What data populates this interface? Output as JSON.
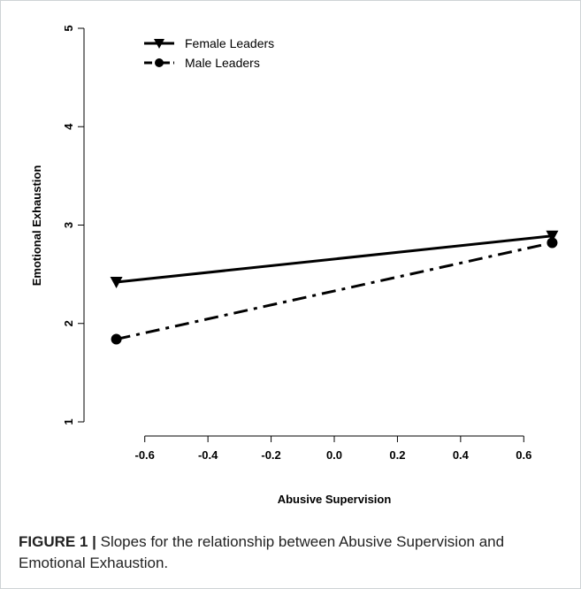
{
  "chart_data": {
    "type": "line",
    "xlabel": "Abusive Supervision",
    "ylabel": "Emotional Exhaustion",
    "xlim": [
      -0.7,
      0.7
    ],
    "ylim": [
      1,
      5
    ],
    "xticks": [
      "-0.6",
      "-0.4",
      "-0.2",
      "0.0",
      "0.2",
      "0.4",
      "0.6"
    ],
    "yticks": [
      "1",
      "2",
      "3",
      "4",
      "5"
    ],
    "legend_position": "top-left",
    "grid": false,
    "series": [
      {
        "name": "Female Leaders",
        "marker": "triangle-down",
        "linestyle": "solid",
        "color": "#000000",
        "x": [
          -0.69,
          0.69
        ],
        "y": [
          2.42,
          2.89
        ]
      },
      {
        "name": "Male Leaders",
        "marker": "circle",
        "linestyle": "dash-dot",
        "color": "#000000",
        "x": [
          -0.69,
          0.69
        ],
        "y": [
          1.84,
          2.82
        ]
      }
    ]
  },
  "caption": {
    "label": "FIGURE 1 |",
    "text": " Slopes for the relationship between Abusive Supervision and Emotional Exhaustion."
  }
}
